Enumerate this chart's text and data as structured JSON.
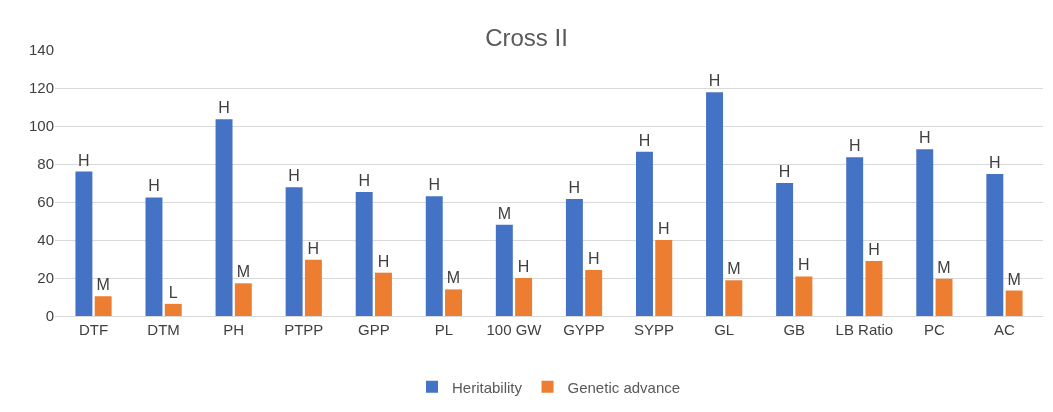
{
  "chart_data": {
    "type": "bar",
    "title": "Cross II",
    "categories": [
      "DTF",
      "DTM",
      "PH",
      "PTPP",
      "GPP",
      "PL",
      "100 GW",
      "GYPP",
      "SYPP",
      "GL",
      "GB",
      "LB Ratio",
      "PC",
      "AC"
    ],
    "series": [
      {
        "name": "Heritability",
        "color": "#4472c4",
        "values": [
          76,
          62.4,
          103.6,
          67.8,
          65.2,
          63,
          48,
          61.6,
          86.4,
          117.8,
          70,
          83.6,
          87.8,
          74.8
        ],
        "value_labels": [
          "H",
          "H",
          "H",
          "H",
          "H",
          "H",
          "M",
          "H",
          "H",
          "H",
          "H",
          "H",
          "H",
          "H"
        ]
      },
      {
        "name": "Genetic advance",
        "color": "#ed7d31",
        "values": [
          10.4,
          6.4,
          17.2,
          29.6,
          22.8,
          14,
          20,
          24.2,
          40,
          18.8,
          20.8,
          29,
          19.6,
          13.4
        ],
        "value_labels": [
          "M",
          "L",
          "M",
          "H",
          "H",
          "M",
          "H",
          "H",
          "H",
          "M",
          "H",
          "H",
          "M",
          "M"
        ]
      }
    ],
    "ylim": [
      0,
      140
    ],
    "yticks": [
      0,
      20,
      40,
      60,
      80,
      100,
      120,
      140
    ],
    "grid": "y",
    "legend": "bottom"
  }
}
